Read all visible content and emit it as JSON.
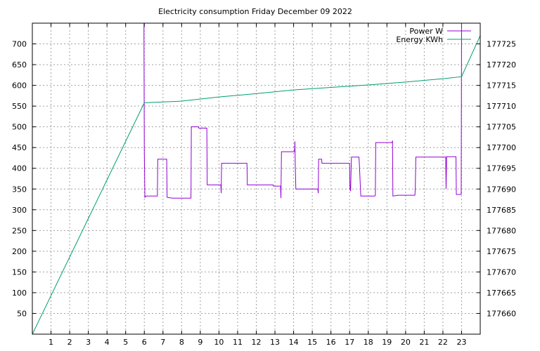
{
  "chart_data": {
    "type": "line",
    "title": "Electricity consumption Friday December 09 2022",
    "grid": true,
    "legend_position": "top-right",
    "x": {
      "range": [
        0,
        24
      ],
      "ticks": [
        1,
        2,
        3,
        4,
        5,
        6,
        7,
        8,
        9,
        10,
        11,
        12,
        13,
        14,
        15,
        16,
        17,
        18,
        19,
        20,
        21,
        22,
        23
      ]
    },
    "y_left": {
      "range": [
        0,
        750
      ],
      "ticks": [
        50,
        100,
        150,
        200,
        250,
        300,
        350,
        400,
        450,
        500,
        550,
        600,
        650,
        700
      ]
    },
    "y_right": {
      "range": [
        177655,
        177730
      ],
      "ticks": [
        177660,
        177665,
        177670,
        177675,
        177680,
        177685,
        177690,
        177695,
        177700,
        177705,
        177710,
        177715,
        177720,
        177725
      ]
    },
    "series": [
      {
        "name": "Power W",
        "axis": "left",
        "color": "#9400d3",
        "points": [
          [
            5.98,
            750
          ],
          [
            6.0,
            445
          ],
          [
            6.03,
            330
          ],
          [
            6.1,
            333
          ],
          [
            6.7,
            333
          ],
          [
            6.72,
            422
          ],
          [
            7.2,
            422
          ],
          [
            7.22,
            330
          ],
          [
            7.5,
            328
          ],
          [
            8.5,
            328
          ],
          [
            8.52,
            500
          ],
          [
            8.9,
            500
          ],
          [
            8.92,
            497
          ],
          [
            9.35,
            497
          ],
          [
            9.37,
            360
          ],
          [
            10.1,
            360
          ],
          [
            10.12,
            340
          ],
          [
            10.14,
            412
          ],
          [
            11.5,
            412
          ],
          [
            11.52,
            360
          ],
          [
            12.9,
            360
          ],
          [
            12.92,
            357
          ],
          [
            13.3,
            357
          ],
          [
            13.32,
            328
          ],
          [
            13.35,
            440
          ],
          [
            14.05,
            440
          ],
          [
            14.07,
            465
          ],
          [
            14.09,
            405
          ],
          [
            14.12,
            350
          ],
          [
            15.3,
            350
          ],
          [
            15.32,
            340
          ],
          [
            15.34,
            422
          ],
          [
            15.5,
            422
          ],
          [
            15.52,
            412
          ],
          [
            17.0,
            412
          ],
          [
            17.02,
            350
          ],
          [
            17.05,
            345
          ],
          [
            17.1,
            427
          ],
          [
            17.5,
            427
          ],
          [
            17.52,
            413
          ],
          [
            17.6,
            333
          ],
          [
            18.35,
            333
          ],
          [
            18.38,
            335
          ],
          [
            18.4,
            462
          ],
          [
            19.28,
            462
          ],
          [
            19.3,
            467
          ],
          [
            19.32,
            333
          ],
          [
            19.6,
            335
          ],
          [
            20.5,
            335
          ],
          [
            20.52,
            352
          ],
          [
            20.55,
            427
          ],
          [
            22.15,
            427
          ],
          [
            22.17,
            350
          ],
          [
            22.2,
            428
          ],
          [
            22.7,
            428
          ],
          [
            22.72,
            337
          ],
          [
            22.98,
            337
          ],
          [
            23.0,
            750
          ]
        ]
      },
      {
        "name": "Energy KWh",
        "axis": "right",
        "color": "#009e73",
        "points": [
          [
            0,
            177655.0
          ],
          [
            6.0,
            177710.8
          ],
          [
            8.0,
            177711.2
          ],
          [
            10.0,
            177712.2
          ],
          [
            12.0,
            177713.0
          ],
          [
            14.0,
            177713.9
          ],
          [
            16.0,
            177714.5
          ],
          [
            18.0,
            177715.1
          ],
          [
            20.0,
            177715.8
          ],
          [
            22.0,
            177716.6
          ],
          [
            23.0,
            177717.1
          ],
          [
            24.0,
            177727.0
          ]
        ]
      }
    ]
  }
}
